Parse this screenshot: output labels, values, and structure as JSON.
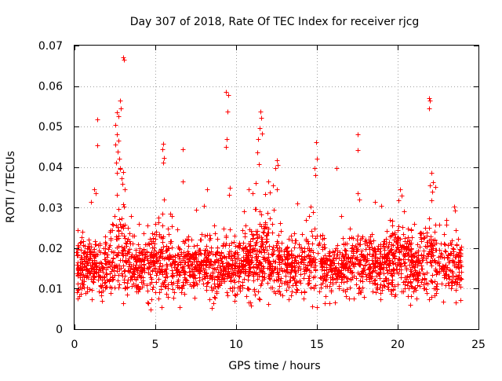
{
  "chart_data": {
    "type": "scatter",
    "title": "Day 307 of 2018, Rate Of TEC Index for receiver rjcg",
    "xlabel": "GPS time / hours",
    "ylabel": "ROTI / TECUs",
    "xlim": [
      0,
      25
    ],
    "ylim": [
      0,
      0.07
    ],
    "xticks": [
      0,
      5,
      10,
      15,
      20,
      25
    ],
    "yticks": [
      0,
      0.01,
      0.02,
      0.03,
      0.04,
      0.05,
      0.06,
      0.07
    ],
    "ytick_labels": [
      "0",
      "0.01",
      "0.02",
      "0.03",
      "0.04",
      "0.05",
      "0.06",
      "0.07"
    ],
    "grid": true,
    "marker": "+",
    "series": [
      {
        "color": "#ff0000",
        "points": [
          [
            3.0,
            0.067
          ],
          [
            3.05,
            0.0665
          ],
          [
            9.35,
            0.0585
          ],
          [
            9.5,
            0.0578
          ],
          [
            9.45,
            0.0538
          ],
          [
            21.95,
            0.057
          ],
          [
            22.0,
            0.0565
          ],
          [
            21.95,
            0.0545
          ],
          [
            2.8,
            0.0565
          ],
          [
            2.85,
            0.0545
          ],
          [
            2.6,
            0.0535
          ],
          [
            2.7,
            0.0525
          ],
          [
            2.5,
            0.0505
          ],
          [
            1.4,
            0.0518
          ],
          [
            1.4,
            0.0453
          ],
          [
            11.5,
            0.0537
          ],
          [
            11.55,
            0.0522
          ],
          [
            11.45,
            0.0497
          ],
          [
            11.6,
            0.0482
          ],
          [
            11.35,
            0.047
          ],
          [
            11.3,
            0.0437
          ],
          [
            11.4,
            0.0408
          ],
          [
            17.5,
            0.048
          ],
          [
            17.5,
            0.0443
          ],
          [
            14.95,
            0.0462
          ],
          [
            15.0,
            0.042
          ],
          [
            14.85,
            0.0398
          ],
          [
            14.9,
            0.038
          ],
          [
            5.5,
            0.0457
          ],
          [
            5.45,
            0.0445
          ],
          [
            5.55,
            0.0422
          ],
          [
            5.5,
            0.0412
          ],
          [
            6.7,
            0.0445
          ],
          [
            9.4,
            0.047
          ],
          [
            9.35,
            0.045
          ],
          [
            12.5,
            0.0417
          ],
          [
            12.55,
            0.0405
          ],
          [
            12.45,
            0.0398
          ],
          [
            16.2,
            0.0397
          ],
          [
            2.6,
            0.048
          ],
          [
            2.7,
            0.0465
          ],
          [
            2.5,
            0.0455
          ],
          [
            2.65,
            0.0438
          ],
          [
            2.75,
            0.042
          ],
          [
            2.55,
            0.0412
          ],
          [
            2.8,
            0.0398
          ],
          [
            2.6,
            0.0385
          ],
          [
            3.0,
            0.0388
          ],
          [
            2.9,
            0.0372
          ],
          [
            2.95,
            0.0358
          ],
          [
            3.1,
            0.0345
          ],
          [
            8.2,
            0.0345
          ],
          [
            6.7,
            0.0365
          ],
          [
            20.15,
            0.0345
          ],
          [
            20.25,
            0.033
          ],
          [
            20.05,
            0.0318
          ],
          [
            22.1,
            0.0385
          ],
          [
            22.2,
            0.0362
          ],
          [
            22.0,
            0.0355
          ],
          [
            22.15,
            0.034
          ],
          [
            10.8,
            0.0345
          ],
          [
            11.0,
            0.0335
          ],
          [
            11.2,
            0.036
          ],
          [
            12.0,
            0.0365
          ],
          [
            12.3,
            0.0355
          ],
          [
            12.1,
            0.0338
          ],
          [
            12.5,
            0.0345
          ],
          [
            17.5,
            0.0335
          ],
          [
            17.6,
            0.032
          ],
          [
            18.6,
            0.0315
          ],
          [
            19.0,
            0.0305
          ],
          [
            1.2,
            0.0345
          ],
          [
            1.3,
            0.0335
          ],
          [
            1.0,
            0.0315
          ],
          [
            23.5,
            0.0302
          ],
          [
            23.55,
            0.0292
          ],
          [
            9.6,
            0.035
          ],
          [
            9.55,
            0.0332
          ],
          [
            13.8,
            0.031
          ],
          [
            14.5,
            0.028
          ],
          [
            4.5,
            0.0255
          ],
          [
            7.5,
            0.0295
          ],
          [
            8.0,
            0.0305
          ],
          [
            3.5,
            0.028
          ],
          [
            4.0,
            0.026
          ],
          [
            6.0,
            0.028
          ],
          [
            10.5,
            0.029
          ],
          [
            16.5,
            0.028
          ],
          [
            19.5,
            0.027
          ],
          [
            21.0,
            0.026
          ],
          [
            23.0,
            0.027
          ],
          [
            0.2,
            0.0075
          ],
          [
            0.3,
            0.0082
          ],
          [
            1.7,
            0.007
          ],
          [
            4.5,
            0.0065
          ],
          [
            4.7,
            0.0048
          ],
          [
            6.5,
            0.0055
          ],
          [
            8.5,
            0.0052
          ],
          [
            10.8,
            0.0065
          ],
          [
            15.0,
            0.0055
          ],
          [
            17.0,
            0.0075
          ],
          [
            19.8,
            0.0082
          ],
          [
            22.8,
            0.0068
          ],
          [
            23.6,
            0.0065
          ],
          [
            23.9,
            0.0072
          ]
        ]
      }
    ]
  }
}
